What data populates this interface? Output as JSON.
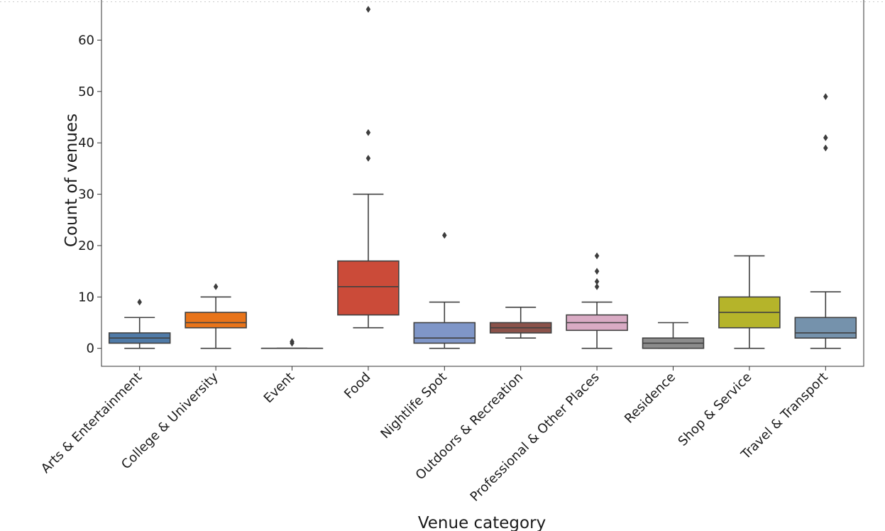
{
  "chart_data": {
    "type": "box",
    "xlabel": "Venue category",
    "ylabel": "Count of venues",
    "ylim": [
      -3.5,
      68.5
    ],
    "yticks": [
      0,
      10,
      20,
      30,
      40,
      50,
      60
    ],
    "grid": false,
    "categories": [
      {
        "name": "Arts & Entertainment",
        "color": "#4f7aa7",
        "whisker_low": 0,
        "q1": 1,
        "median": 2,
        "q3": 3,
        "whisker_high": 6,
        "outliers": [
          9
        ]
      },
      {
        "name": "College & University",
        "color": "#e8741a",
        "whisker_low": 0,
        "q1": 4,
        "median": 5,
        "q3": 7,
        "whisker_high": 10,
        "outliers": [
          12
        ]
      },
      {
        "name": "Event",
        "color": "#3a9b48",
        "whisker_low": 0,
        "q1": 0,
        "median": 0,
        "q3": 0,
        "whisker_high": 0,
        "outliers": [
          1,
          1.3
        ]
      },
      {
        "name": "Food",
        "color": "#cb4b39",
        "whisker_low": 4,
        "q1": 6.5,
        "median": 12,
        "q3": 17,
        "whisker_high": 30,
        "outliers": [
          37,
          42,
          66
        ]
      },
      {
        "name": "Nightlife Spot",
        "color": "#7f96c8",
        "whisker_low": 0,
        "q1": 1,
        "median": 2,
        "q3": 5,
        "whisker_high": 9,
        "outliers": [
          22
        ]
      },
      {
        "name": "Outdoors & Recreation",
        "color": "#8b524a",
        "whisker_low": 2,
        "q1": 3,
        "median": 4,
        "q3": 5,
        "whisker_high": 8,
        "outliers": []
      },
      {
        "name": "Professional & Other Places",
        "color": "#d9abc4",
        "whisker_low": 0,
        "q1": 3.5,
        "median": 5,
        "q3": 6.5,
        "whisker_high": 9,
        "outliers": [
          12,
          13,
          15,
          18
        ]
      },
      {
        "name": "Residence",
        "color": "#8c8c8c",
        "whisker_low": 0,
        "q1": 0,
        "median": 1,
        "q3": 2,
        "whisker_high": 5,
        "outliers": []
      },
      {
        "name": "Shop & Service",
        "color": "#b5b42a",
        "whisker_low": 0,
        "q1": 4,
        "median": 7,
        "q3": 10,
        "whisker_high": 18,
        "outliers": []
      },
      {
        "name": "Travel & Transport",
        "color": "#7592ac",
        "whisker_low": 0,
        "q1": 2,
        "median": 3,
        "q3": 6,
        "whisker_high": 11,
        "outliers": [
          39,
          41,
          49
        ]
      }
    ]
  }
}
